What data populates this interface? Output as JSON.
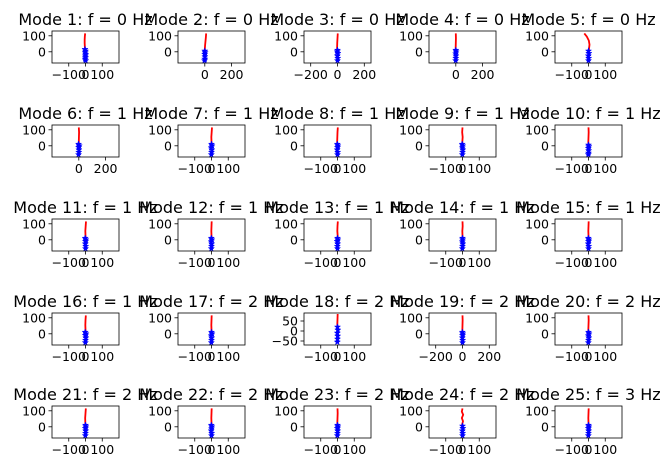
{
  "chart_data": {
    "type": "line",
    "layout": "5x5 grid of subplots",
    "series_colors": {
      "line": "#ff0000",
      "markers": "#0000ff"
    },
    "marker": "star",
    "subplots": [
      {
        "title": "Mode 1: f = 0 Hz",
        "xticks": [
          "−100",
          "0",
          "100"
        ],
        "xlim": [
          -200,
          200
        ],
        "yticks": [
          "0",
          "100"
        ],
        "ylim": [
          -70,
          130
        ],
        "line_x": [
          -2,
          -4,
          -5,
          -5,
          -4,
          -3,
          -2,
          -2
        ],
        "line_y": [
          115,
          95,
          75,
          55,
          35,
          15,
          -5,
          -20
        ],
        "star_x": [
          -3,
          0,
          -2,
          1,
          -1,
          0,
          -2,
          1
        ],
        "star_y": [
          15,
          5,
          -5,
          -15,
          -25,
          -35,
          -45,
          -55
        ]
      },
      {
        "title": "Mode 2: f = 0 Hz",
        "xticks": [
          "0",
          "200"
        ],
        "xlim": [
          -200,
          300
        ],
        "yticks": [
          "0",
          "100"
        ],
        "ylim": [
          -70,
          130
        ],
        "line_x": [
          10,
          8,
          5,
          2,
          0,
          -1,
          -1
        ],
        "line_y": [
          115,
          90,
          65,
          40,
          15,
          -5,
          -20
        ],
        "star_x": [
          0,
          2,
          -1,
          1,
          0,
          -2
        ],
        "star_y": [
          5,
          -5,
          -15,
          -30,
          -45,
          -55
        ]
      },
      {
        "title": "Mode 3: f = 0 Hz",
        "xticks": [
          "−200",
          "0",
          "200"
        ],
        "xlim": [
          -250,
          250
        ],
        "yticks": [
          "0",
          "100"
        ],
        "ylim": [
          -70,
          130
        ],
        "line_x": [
          2,
          0,
          -2,
          -3,
          -2,
          -1
        ],
        "line_y": [
          115,
          85,
          55,
          25,
          0,
          -20
        ],
        "star_x": [
          0,
          -2,
          3,
          -1,
          2,
          0
        ],
        "star_y": [
          10,
          0,
          -10,
          -25,
          -40,
          -55
        ]
      },
      {
        "title": "Mode 4: f = 0 Hz",
        "xticks": [
          "0",
          "200"
        ],
        "xlim": [
          -200,
          300
        ],
        "yticks": [
          "0",
          "100"
        ],
        "ylim": [
          -70,
          130
        ],
        "line_x": [
          0,
          1,
          0,
          -1,
          0,
          1
        ],
        "line_y": [
          115,
          85,
          55,
          25,
          0,
          -20
        ],
        "star_x": [
          0,
          2,
          -1,
          1,
          0,
          -1
        ],
        "star_y": [
          10,
          0,
          -12,
          -25,
          -40,
          -55
        ]
      },
      {
        "title": "Mode 5: f = 0 Hz",
        "xticks": [
          "−100",
          "0",
          "100"
        ],
        "xlim": [
          -200,
          200
        ],
        "yticks": [
          "0",
          "100"
        ],
        "ylim": [
          -70,
          130
        ],
        "line_x": [
          -25,
          -10,
          2,
          6,
          3,
          0
        ],
        "line_y": [
          115,
          95,
          70,
          45,
          20,
          -5
        ],
        "star_x": [
          0,
          2,
          -1,
          1,
          0
        ],
        "star_y": [
          5,
          -10,
          -25,
          -40,
          -55
        ]
      },
      {
        "title": "Mode 6: f = 1 Hz",
        "xticks": [
          "0",
          "200"
        ],
        "xlim": [
          -200,
          300
        ],
        "yticks": [
          "0",
          "100"
        ],
        "ylim": [
          -70,
          130
        ],
        "line_x": [
          0,
          2,
          1,
          0,
          -1
        ],
        "line_y": [
          115,
          85,
          55,
          25,
          0
        ],
        "star_x": [
          -2,
          3,
          -1,
          1,
          0,
          -2
        ],
        "star_y": [
          10,
          0,
          -10,
          -25,
          -40,
          -55
        ]
      },
      {
        "title": "Mode 7: f = 1 Hz",
        "xticks": [
          "−100",
          "0",
          "100"
        ],
        "xlim": [
          -200,
          200
        ],
        "yticks": [
          "0",
          "100"
        ],
        "ylim": [
          -70,
          130
        ],
        "line_x": [
          3,
          1,
          -1,
          0,
          2,
          1
        ],
        "line_y": [
          115,
          85,
          55,
          25,
          0,
          -20
        ],
        "star_x": [
          0,
          3,
          -2,
          2,
          0,
          -1
        ],
        "star_y": [
          10,
          0,
          -12,
          -25,
          -40,
          -55
        ]
      },
      {
        "title": "Mode 8: f = 1 Hz",
        "xticks": [
          "−100",
          "0",
          "100"
        ],
        "xlim": [
          -200,
          200
        ],
        "yticks": [
          "0",
          "100"
        ],
        "ylim": [
          -70,
          130
        ],
        "line_x": [
          2,
          0,
          -1,
          -2,
          -1,
          0
        ],
        "line_y": [
          115,
          85,
          55,
          25,
          0,
          -20
        ],
        "star_x": [
          -1,
          2,
          0,
          -2,
          1,
          0
        ],
        "star_y": [
          10,
          0,
          -10,
          -25,
          -40,
          -55
        ]
      },
      {
        "title": "Mode 9: f = 1 Hz",
        "xticks": [
          "−100",
          "0",
          "100"
        ],
        "xlim": [
          -200,
          200
        ],
        "yticks": [
          "0",
          "100"
        ],
        "ylim": [
          -70,
          130
        ],
        "line_x": [
          0,
          -2,
          1,
          -1,
          0
        ],
        "line_y": [
          115,
          85,
          55,
          25,
          0
        ],
        "star_x": [
          -2,
          1,
          -1,
          2,
          0,
          -1
        ],
        "star_y": [
          10,
          0,
          -12,
          -25,
          -40,
          -55
        ]
      },
      {
        "title": "Mode 10: f = 1 Hz",
        "xticks": [
          "−100",
          "0",
          "100"
        ],
        "xlim": [
          -200,
          200
        ],
        "yticks": [
          "0",
          "100"
        ],
        "ylim": [
          -70,
          130
        ],
        "line_x": [
          0,
          1,
          0,
          -1,
          0
        ],
        "line_y": [
          115,
          85,
          55,
          25,
          0
        ],
        "star_x": [
          0,
          2,
          -1,
          1,
          0,
          -1
        ],
        "star_y": [
          5,
          -5,
          -15,
          -30,
          -45,
          -55
        ]
      },
      {
        "title": "Mode 11: f = 1 Hz",
        "xticks": [
          "−100",
          "0",
          "100"
        ],
        "xlim": [
          -200,
          200
        ],
        "yticks": [
          "0",
          "100"
        ],
        "ylim": [
          -70,
          130
        ],
        "line_x": [
          3,
          1,
          -1,
          0,
          1
        ],
        "line_y": [
          115,
          85,
          55,
          25,
          0
        ],
        "star_x": [
          -2,
          2,
          0,
          -1,
          1,
          0
        ],
        "star_y": [
          10,
          0,
          -10,
          -25,
          -40,
          -55
        ]
      },
      {
        "title": "Mode 12: f = 1 Hz",
        "xticks": [
          "−100",
          "0",
          "100"
        ],
        "xlim": [
          -200,
          200
        ],
        "yticks": [
          "0",
          "100"
        ],
        "ylim": [
          -70,
          130
        ],
        "line_x": [
          1,
          0,
          -1,
          0,
          1
        ],
        "line_y": [
          115,
          85,
          55,
          25,
          0
        ],
        "star_x": [
          -1,
          2,
          -2,
          1,
          0,
          -1
        ],
        "star_y": [
          10,
          0,
          -12,
          -25,
          -40,
          -55
        ]
      },
      {
        "title": "Mode 13: f = 1 Hz",
        "xticks": [
          "−100",
          "0",
          "100"
        ],
        "xlim": [
          -200,
          200
        ],
        "yticks": [
          "0",
          "100"
        ],
        "ylim": [
          -70,
          130
        ],
        "line_x": [
          2,
          0,
          -1,
          1,
          0
        ],
        "line_y": [
          115,
          85,
          55,
          25,
          0
        ],
        "star_x": [
          0,
          2,
          -2,
          1,
          -1,
          0
        ],
        "star_y": [
          10,
          0,
          -10,
          -25,
          -40,
          -55
        ]
      },
      {
        "title": "Mode 14: f = 1 Hz",
        "xticks": [
          "−100",
          "0",
          "100"
        ],
        "xlim": [
          -200,
          200
        ],
        "yticks": [
          "0",
          "100"
        ],
        "ylim": [
          -70,
          130
        ],
        "line_x": [
          0,
          1,
          -1,
          0,
          1
        ],
        "line_y": [
          115,
          85,
          55,
          25,
          0
        ],
        "star_x": [
          0,
          1,
          -1,
          2,
          0,
          -1
        ],
        "star_y": [
          10,
          0,
          -12,
          -25,
          -40,
          -55
        ]
      },
      {
        "title": "Mode 15: f = 1 Hz",
        "xticks": [
          "−100",
          "0",
          "100"
        ],
        "xlim": [
          -200,
          200
        ],
        "yticks": [
          "0",
          "100"
        ],
        "ylim": [
          -70,
          130
        ],
        "line_x": [
          1,
          0,
          -1,
          0,
          1
        ],
        "line_y": [
          115,
          85,
          55,
          25,
          0
        ],
        "star_x": [
          -1,
          2,
          0,
          -2,
          1,
          0
        ],
        "star_y": [
          10,
          0,
          -10,
          -25,
          -40,
          -55
        ]
      },
      {
        "title": "Mode 16: f = 1 Hz",
        "xticks": [
          "−100",
          "0",
          "100"
        ],
        "xlim": [
          -200,
          200
        ],
        "yticks": [
          "0",
          "100"
        ],
        "ylim": [
          -70,
          130
        ],
        "line_x": [
          2,
          0,
          -1,
          0,
          1
        ],
        "line_y": [
          115,
          85,
          55,
          25,
          0
        ],
        "star_x": [
          -2,
          3,
          -1,
          2,
          0,
          -1
        ],
        "star_y": [
          10,
          0,
          -10,
          -25,
          -40,
          -55
        ]
      },
      {
        "title": "Mode 17: f = 2 Hz",
        "xticks": [
          "−100",
          "0",
          "100"
        ],
        "xlim": [
          -200,
          200
        ],
        "yticks": [
          "0",
          "100"
        ],
        "ylim": [
          -70,
          130
        ],
        "line_x": [
          1,
          0,
          -1,
          0,
          1
        ],
        "line_y": [
          115,
          85,
          55,
          25,
          0
        ],
        "star_x": [
          0,
          3,
          -2,
          1,
          0,
          -1
        ],
        "star_y": [
          10,
          0,
          -12,
          -25,
          -40,
          -55
        ]
      },
      {
        "title": "Mode 18: f = 2 Hz",
        "xticks": [
          "−100",
          "0",
          "100"
        ],
        "xlim": [
          -200,
          200
        ],
        "yticks": [
          "−50",
          "0",
          "50"
        ],
        "ylim": [
          -70,
          90
        ],
        "line_x": [
          1,
          0,
          -1,
          0,
          1
        ],
        "line_y": [
          85,
          60,
          35,
          10,
          -10
        ],
        "star_x": [
          0,
          2,
          -1,
          1,
          0,
          -1
        ],
        "star_y": [
          20,
          5,
          -10,
          -25,
          -40,
          -55
        ]
      },
      {
        "title": "Mode 19: f = 2 Hz",
        "xticks": [
          "−200",
          "0",
          "200"
        ],
        "xlim": [
          -250,
          250
        ],
        "yticks": [
          "0",
          "100"
        ],
        "ylim": [
          -70,
          130
        ],
        "line_x": [
          0,
          1,
          0,
          -1,
          0
        ],
        "line_y": [
          115,
          85,
          55,
          25,
          0
        ],
        "star_x": [
          -1,
          2,
          0,
          -1,
          1,
          0
        ],
        "star_y": [
          10,
          0,
          -10,
          -25,
          -40,
          -55
        ]
      },
      {
        "title": "Mode 20: f = 2 Hz",
        "xticks": [
          "−100",
          "0",
          "100"
        ],
        "xlim": [
          -200,
          200
        ],
        "yticks": [
          "0",
          "100"
        ],
        "ylim": [
          -70,
          130
        ],
        "line_x": [
          0,
          1,
          0,
          -1,
          0
        ],
        "line_y": [
          115,
          85,
          55,
          25,
          0
        ],
        "star_x": [
          0,
          3,
          -1,
          2,
          0,
          -1
        ],
        "star_y": [
          10,
          0,
          -12,
          -25,
          -40,
          -55
        ]
      },
      {
        "title": "Mode 21: f = 2 Hz",
        "xticks": [
          "−100",
          "0",
          "100"
        ],
        "xlim": [
          -200,
          200
        ],
        "yticks": [
          "0",
          "100"
        ],
        "ylim": [
          -70,
          130
        ],
        "line_x": [
          2,
          0,
          -2,
          -1,
          0
        ],
        "line_y": [
          115,
          85,
          55,
          25,
          0
        ],
        "star_x": [
          0,
          2,
          -1,
          1,
          0,
          -1
        ],
        "star_y": [
          10,
          0,
          -10,
          -25,
          -40,
          -55
        ]
      },
      {
        "title": "Mode 22: f = 2 Hz",
        "xticks": [
          "−100",
          "0",
          "100"
        ],
        "xlim": [
          -200,
          200
        ],
        "yticks": [
          "0",
          "100"
        ],
        "ylim": [
          -70,
          130
        ],
        "line_x": [
          1,
          0,
          -1,
          0,
          1
        ],
        "line_y": [
          115,
          85,
          55,
          25,
          0
        ],
        "star_x": [
          -1,
          2,
          0,
          -2,
          1,
          0
        ],
        "star_y": [
          10,
          0,
          -12,
          -25,
          -40,
          -55
        ]
      },
      {
        "title": "Mode 23: f = 2 Hz",
        "xticks": [
          "−100",
          "0",
          "100"
        ],
        "xlim": [
          -200,
          200
        ],
        "yticks": [
          "0",
          "100"
        ],
        "ylim": [
          -70,
          130
        ],
        "line_x": [
          0,
          1,
          0,
          -1,
          0
        ],
        "line_y": [
          115,
          85,
          55,
          25,
          0
        ],
        "star_x": [
          0,
          2,
          -1,
          1,
          0,
          -1
        ],
        "star_y": [
          10,
          0,
          -10,
          -25,
          -40,
          -55
        ]
      },
      {
        "title": "Mode 24: f = 2 Hz",
        "xticks": [
          "−100",
          "0",
          "100"
        ],
        "xlim": [
          -200,
          200
        ],
        "yticks": [
          "0",
          "100"
        ],
        "ylim": [
          -70,
          130
        ],
        "line_x": [
          0,
          -4,
          4,
          -4,
          3,
          -2,
          1,
          0
        ],
        "line_y": [
          115,
          95,
          75,
          55,
          35,
          15,
          0,
          -15
        ],
        "star_x": [
          0,
          2,
          -1,
          1,
          0
        ],
        "star_y": [
          5,
          -10,
          -25,
          -40,
          -55
        ]
      },
      {
        "title": "Mode 25: f = 3 Hz",
        "xticks": [
          "−100",
          "0",
          "100"
        ],
        "xlim": [
          -200,
          200
        ],
        "yticks": [
          "0",
          "100"
        ],
        "ylim": [
          -70,
          130
        ],
        "line_x": [
          1,
          0,
          -1,
          0,
          1
        ],
        "line_y": [
          115,
          85,
          55,
          25,
          0
        ],
        "star_x": [
          0,
          2,
          -1,
          1,
          0,
          -1
        ],
        "star_y": [
          10,
          0,
          -10,
          -25,
          -40,
          -55
        ]
      }
    ]
  }
}
